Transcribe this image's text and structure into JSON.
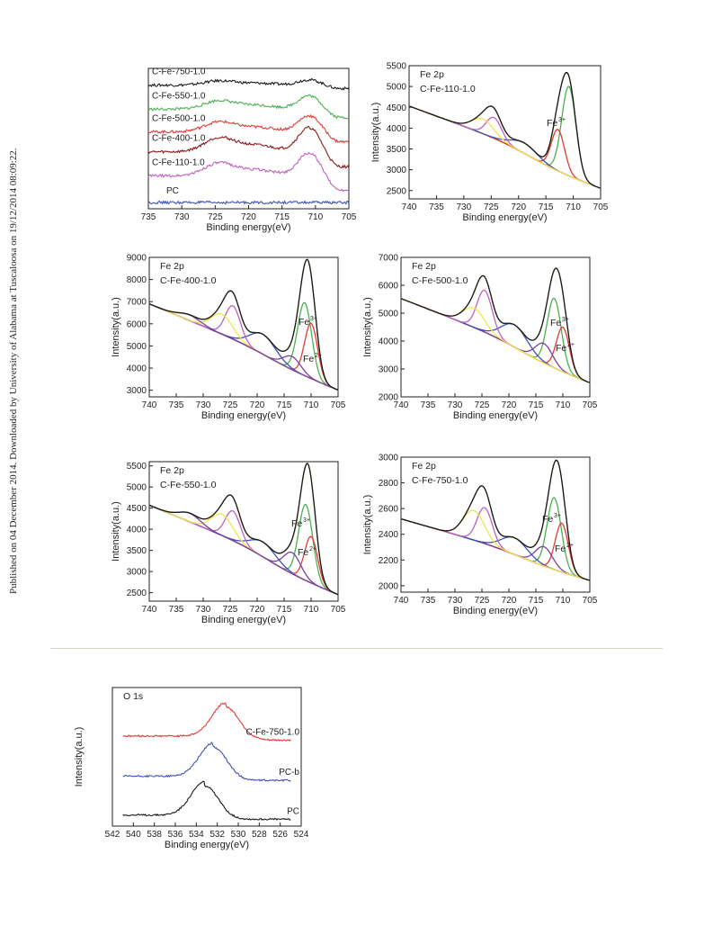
{
  "side_note": "Published on 04 December 2014. Downloaded by University of Alabama at Tuscaloosa on 19/12/2014 08:09:22.",
  "colors": {
    "black": "#1a1a1a",
    "green": "#4caf50",
    "red": "#e53935",
    "dark_red": "#8b1a1a",
    "magenta": "#c060c0",
    "blue": "#3f51b5",
    "yellow": "#f4e34a",
    "orange": "#e87a1e",
    "purple": "#7b3fa0",
    "olive": "#9a9a40"
  },
  "chart_data": [
    {
      "id": "overview",
      "type": "line",
      "xlabel": "Binding energy(eV)",
      "ylabel": "",
      "xlim": [
        735,
        705
      ],
      "xticks": [
        "735",
        "730",
        "725",
        "720",
        "715",
        "710",
        "705"
      ],
      "series": [
        {
          "name": "C-Fe-750-1.0",
          "color": "#1a1a1a",
          "offset": 0.9,
          "amp": [
            0.03,
            0.04
          ]
        },
        {
          "name": "C-Fe-550-1.0",
          "color": "#4caf50",
          "offset": 0.72,
          "amp": [
            0.06,
            0.1
          ]
        },
        {
          "name": "C-Fe-500-1.0",
          "color": "#e53935",
          "offset": 0.55,
          "amp": [
            0.07,
            0.12
          ]
        },
        {
          "name": "C-Fe-400-1.0",
          "color": "#8b1a1a",
          "offset": 0.4,
          "amp": [
            0.1,
            0.18
          ]
        },
        {
          "name": "C-Fe-110-1.0",
          "color": "#c060c0",
          "offset": 0.22,
          "amp": [
            0.09,
            0.17
          ]
        },
        {
          "name": "PC",
          "color": "#3f51b5",
          "offset": 0.02,
          "amp": [
            0.0,
            0.0
          ]
        }
      ]
    },
    {
      "id": "fe2p-110",
      "type": "line",
      "title": "Fe 2p",
      "subtitle": "C-Fe-110-1.0",
      "xlabel": "Binding energy(eV)",
      "ylabel": "Intensity(a.u.)",
      "xlim": [
        740,
        705
      ],
      "ylim": [
        2300,
        5500
      ],
      "xticks": [
        "740",
        "735",
        "730",
        "725",
        "720",
        "715",
        "710",
        "705"
      ],
      "yticks": [
        "2500",
        "3000",
        "3500",
        "4000",
        "4500",
        "5000",
        "5500"
      ],
      "annotations": [
        {
          "text": "Fe",
          "sup": "3+"
        }
      ]
    },
    {
      "id": "fe2p-400",
      "type": "line",
      "title": "Fe 2p",
      "subtitle": "C-Fe-400-1.0",
      "xlabel": "Binding energy(eV)",
      "ylabel": "Intensity(a.u.)",
      "xlim": [
        740,
        705
      ],
      "ylim": [
        2700,
        9000
      ],
      "xticks": [
        "740",
        "735",
        "730",
        "725",
        "720",
        "715",
        "710",
        "705"
      ],
      "yticks": [
        "3000",
        "4000",
        "5000",
        "6000",
        "7000",
        "8000",
        "9000"
      ],
      "annotations": [
        {
          "text": "Fe",
          "sup": "3+"
        },
        {
          "text": "Fe",
          "sup": "2+"
        }
      ]
    },
    {
      "id": "fe2p-500",
      "type": "line",
      "title": "Fe 2p",
      "subtitle": "C-Fe-500-1.0",
      "xlabel": "Binding energy(eV)",
      "ylabel": "Intensity(a.u.)",
      "xlim": [
        740,
        705
      ],
      "ylim": [
        2000,
        7000
      ],
      "xticks": [
        "740",
        "735",
        "730",
        "725",
        "720",
        "715",
        "710",
        "705"
      ],
      "yticks": [
        "2000",
        "3000",
        "4000",
        "5000",
        "6000",
        "7000"
      ],
      "annotations": [
        {
          "text": "Fe",
          "sup": "3+"
        },
        {
          "text": "Fe",
          "sup": "2+"
        }
      ]
    },
    {
      "id": "fe2p-550",
      "type": "line",
      "title": "Fe 2p",
      "subtitle": "C-Fe-550-1.0",
      "xlabel": "Binding energy(eV)",
      "ylabel": "Intensity(a.u.)",
      "xlim": [
        740,
        705
      ],
      "ylim": [
        2300,
        5600
      ],
      "xticks": [
        "740",
        "735",
        "730",
        "725",
        "720",
        "715",
        "710",
        "705"
      ],
      "yticks": [
        "2500",
        "3000",
        "3500",
        "4000",
        "4500",
        "5000",
        "5500"
      ],
      "annotations": [
        {
          "text": "Fe",
          "sup": "3+"
        },
        {
          "text": "Fe",
          "sup": "2+"
        }
      ]
    },
    {
      "id": "fe2p-750",
      "type": "line",
      "title": "Fe 2p",
      "subtitle": "C-Fe-750-1.0",
      "xlabel": "Binding energy(eV)",
      "ylabel": "Intensity(a.u.)",
      "xlim": [
        740,
        705
      ],
      "ylim": [
        1950,
        3000
      ],
      "xticks": [
        "740",
        "735",
        "730",
        "725",
        "720",
        "715",
        "710",
        "705"
      ],
      "yticks": [
        "2000",
        "2200",
        "2400",
        "2600",
        "2800",
        "3000"
      ],
      "annotations": [
        {
          "text": "Fe",
          "sup": "3+"
        },
        {
          "text": "Fe",
          "sup": "2+"
        }
      ]
    },
    {
      "id": "o1s",
      "type": "line",
      "title": "O 1s",
      "xlabel": "Binding energy(eV)",
      "ylabel": "Intensity(a.u.)",
      "xlim": [
        542,
        524
      ],
      "xticks": [
        "542",
        "540",
        "538",
        "536",
        "534",
        "532",
        "530",
        "528",
        "526",
        "524"
      ],
      "series": [
        {
          "name": "C-Fe-750-1.0",
          "color": "#e53935",
          "center": 531.2
        },
        {
          "name": "PC-b",
          "color": "#3f51b5",
          "center": 532.4
        },
        {
          "name": "PC",
          "color": "#1a1a1a",
          "center": 533.2
        }
      ]
    }
  ]
}
